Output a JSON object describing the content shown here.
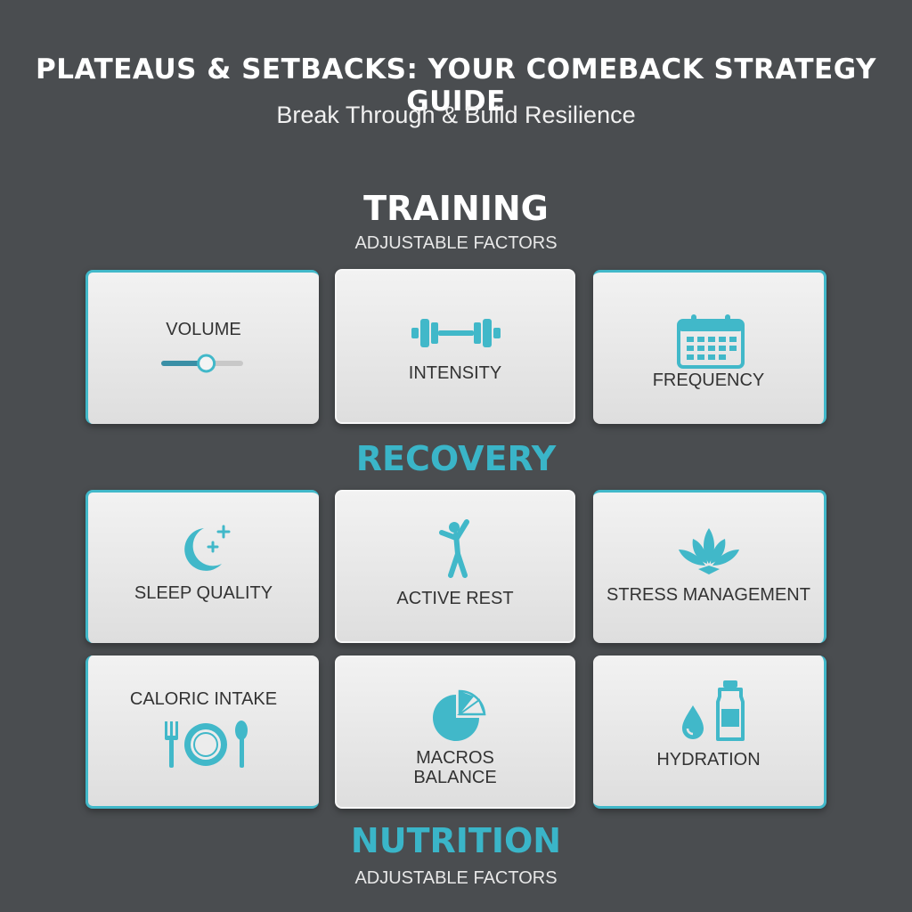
{
  "header": {
    "title": "PLATEAUS & SETBACKS: YOUR COMEBACK STRATEGY GUIDE",
    "subtitle": "Break Through & Build Resilience"
  },
  "sections": {
    "training": {
      "title": "TRAINING",
      "subtitle": "ADJUSTABLE FACTORS"
    },
    "recovery": {
      "title": "RECOVERY"
    },
    "nutrition": {
      "title": "NUTRITION",
      "subtitle": "ADJUSTABLE FACTORS"
    }
  },
  "cards": {
    "volume": {
      "label": "VOLUME",
      "icon": "slider-icon",
      "slider_level": 0.55
    },
    "intensity": {
      "label": "INTENSITY",
      "icon": "dumbbell-icon"
    },
    "frequency": {
      "label": "FREQUENCY",
      "icon": "calendar-icon"
    },
    "sleep_quality": {
      "label": "SLEEP QUALITY",
      "icon": "moon-stars-icon"
    },
    "active_rest": {
      "label": "ACTIVE REST",
      "icon": "person-stretch-icon"
    },
    "stress_management": {
      "label": "STRESS MANAGEMENT",
      "icon": "lotus-icon"
    },
    "caloric_intake": {
      "label": "CALORIC INTAKE",
      "icon": "plate-utensils-icon"
    },
    "macros_balance": {
      "label_line1": "MACROS",
      "label_line2": "BALANCE",
      "icon": "pie-chart-icon"
    },
    "hydration": {
      "label": "HYDRATION",
      "icon": "water-bottle-icon"
    }
  },
  "colors": {
    "background": "#4a4d50",
    "accent": "#41b8c9",
    "card": "#e6e6e6"
  }
}
